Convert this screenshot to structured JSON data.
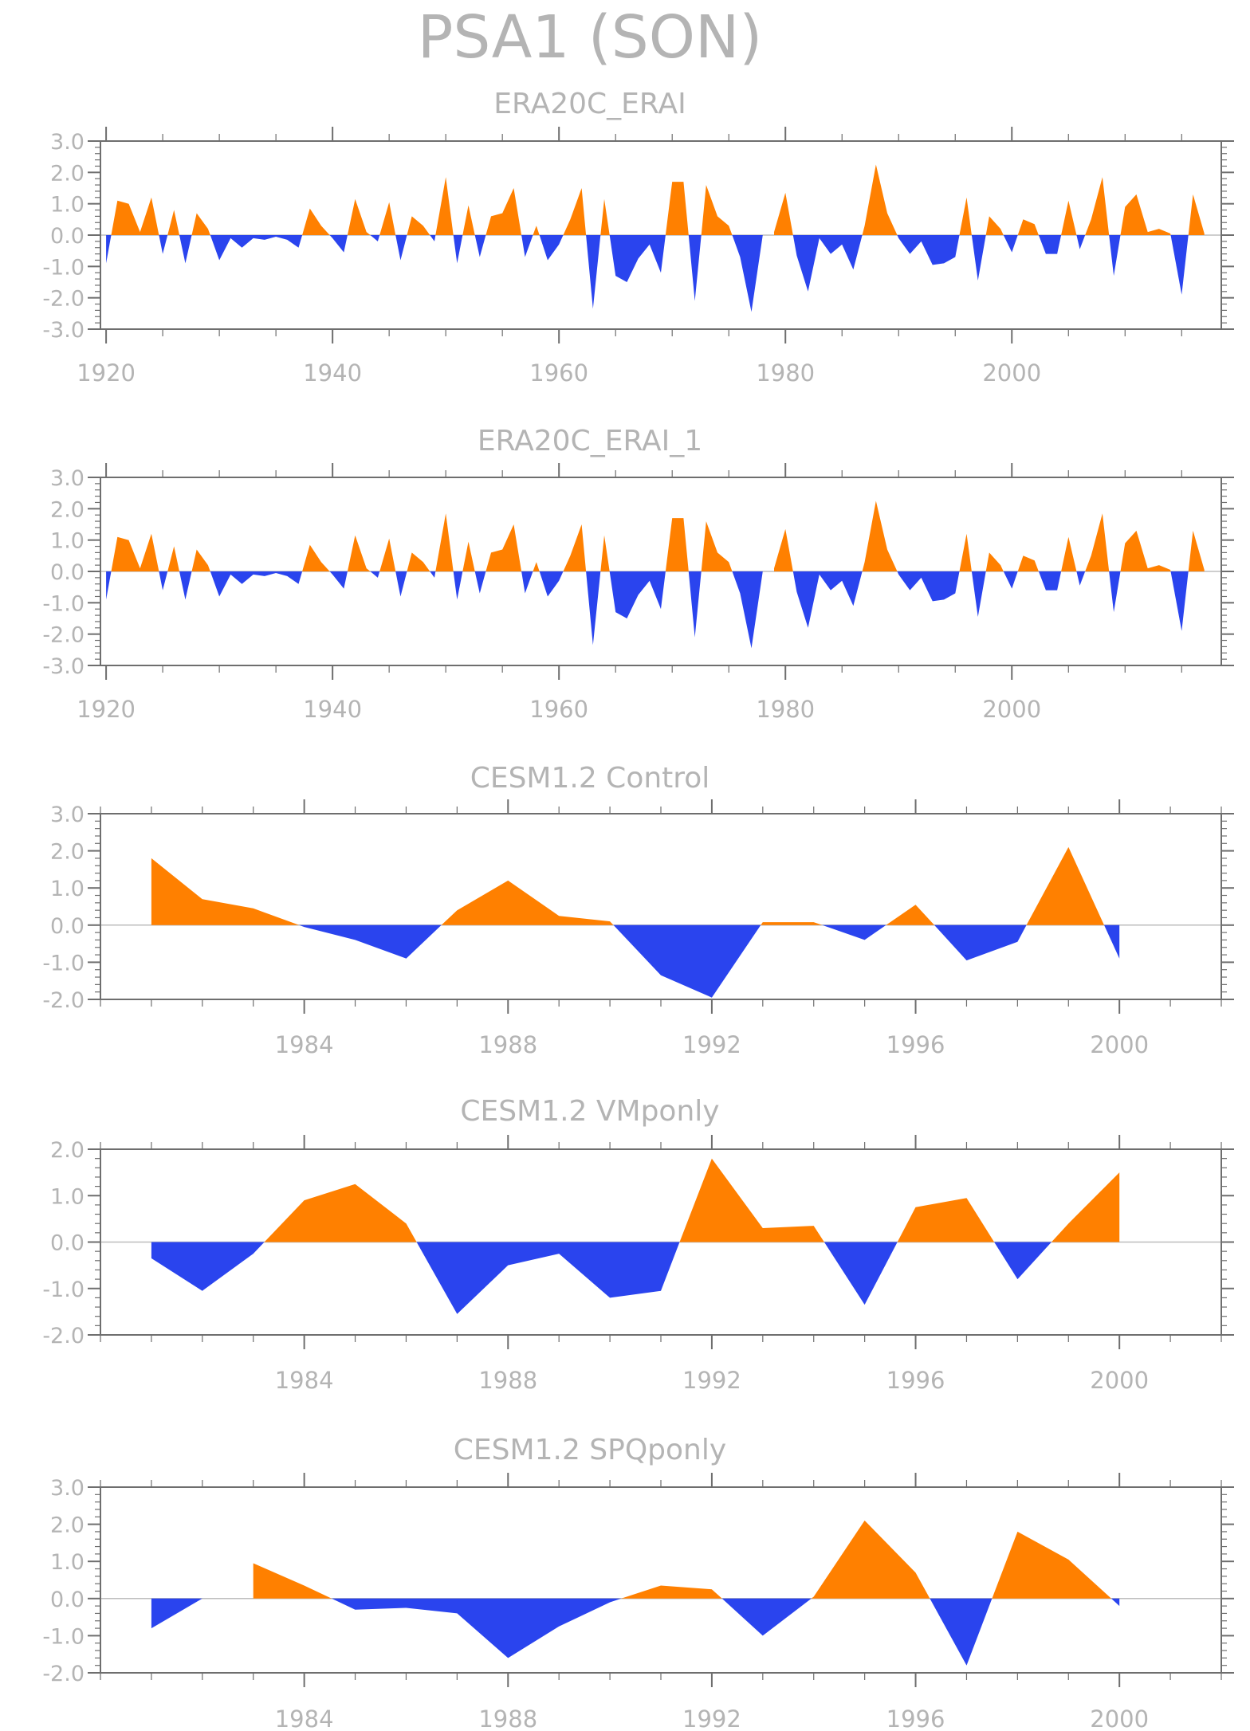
{
  "figure_title": "PSA1 (SON)",
  "colors": {
    "positive": "#ff8000",
    "negative": "#2a44ee",
    "axis": "#6e6e6e",
    "text": "#b4b4b4",
    "zero_line": "#bdbdbd"
  },
  "chart_data": [
    {
      "type": "area",
      "title": "ERA20C_ERAI",
      "xlim": [
        1919.5,
        2018.5
      ],
      "ylim": [
        -3.0,
        3.0
      ],
      "x_ticks": [
        1920,
        1940,
        1960,
        1980,
        2000
      ],
      "y_ticks": [
        "3.0",
        "2.0",
        "1.0",
        "0.0",
        "-1.0",
        "-2.0",
        "-3.0"
      ],
      "x": [
        1920,
        1921,
        1922,
        1923,
        1924,
        1925,
        1926,
        1927,
        1928,
        1929,
        1930,
        1931,
        1932,
        1933,
        1934,
        1935,
        1936,
        1937,
        1938,
        1939,
        1940,
        1941,
        1942,
        1943,
        1944,
        1945,
        1946,
        1947,
        1948,
        1949,
        1950,
        1951,
        1952,
        1953,
        1954,
        1955,
        1956,
        1957,
        1958,
        1959,
        1960,
        1961,
        1962,
        1963,
        1964,
        1965,
        1966,
        1967,
        1968,
        1969,
        1970,
        1971,
        1972,
        1973,
        1974,
        1975,
        1976,
        1977,
        1978,
        1979,
        1980,
        1981,
        1982,
        1983,
        1984,
        1985,
        1986,
        1987,
        1988,
        1989,
        1990,
        1991,
        1992,
        1993,
        1994,
        1995,
        1996,
        1997,
        1998,
        1999,
        2000,
        2001,
        2002,
        2003,
        2004,
        2005,
        2006,
        2007,
        2008,
        2009,
        2010,
        2011,
        2012,
        2013,
        2014,
        2015,
        2016,
        2017
      ],
      "values": [
        -0.9,
        1.1,
        1.0,
        0.1,
        1.2,
        -0.6,
        0.8,
        -0.9,
        0.7,
        0.2,
        -0.8,
        -0.1,
        -0.4,
        -0.1,
        -0.15,
        -0.05,
        -0.15,
        -0.4,
        0.85,
        0.3,
        -0.1,
        -0.55,
        1.15,
        0.1,
        -0.2,
        1.05,
        -0.8,
        0.6,
        0.3,
        -0.2,
        1.85,
        -0.9,
        0.95,
        -0.7,
        0.6,
        0.7,
        1.5,
        -0.7,
        0.3,
        -0.8,
        -0.3,
        0.5,
        1.5,
        -2.35,
        1.15,
        -1.3,
        -1.5,
        -0.75,
        -0.3,
        -1.2,
        1.7,
        1.7,
        -2.1,
        1.6,
        0.6,
        0.3,
        -0.7,
        -2.45,
        0.0,
        0.1,
        1.35,
        -0.65,
        -1.8,
        -0.1,
        -0.6,
        -0.3,
        -1.1,
        0.3,
        2.25,
        0.7,
        -0.1,
        -0.6,
        -0.2,
        -0.95,
        -0.9,
        -0.7,
        1.2,
        -1.45,
        0.6,
        0.2,
        -0.55,
        0.5,
        0.35,
        -0.6,
        -0.6,
        1.1,
        -0.45,
        0.5,
        1.85,
        -1.3,
        0.9,
        1.3,
        0.1,
        0.2,
        0.05,
        -1.9,
        1.3,
        0.05
      ]
    },
    {
      "type": "area",
      "title": "ERA20C_ERAI_1",
      "xlim": [
        1919.5,
        2018.5
      ],
      "ylim": [
        -3.0,
        3.0
      ],
      "x_ticks": [
        1920,
        1940,
        1960,
        1980,
        2000
      ],
      "y_ticks": [
        "3.0",
        "2.0",
        "1.0",
        "0.0",
        "-1.0",
        "-2.0",
        "-3.0"
      ],
      "x": [
        1920,
        1921,
        1922,
        1923,
        1924,
        1925,
        1926,
        1927,
        1928,
        1929,
        1930,
        1931,
        1932,
        1933,
        1934,
        1935,
        1936,
        1937,
        1938,
        1939,
        1940,
        1941,
        1942,
        1943,
        1944,
        1945,
        1946,
        1947,
        1948,
        1949,
        1950,
        1951,
        1952,
        1953,
        1954,
        1955,
        1956,
        1957,
        1958,
        1959,
        1960,
        1961,
        1962,
        1963,
        1964,
        1965,
        1966,
        1967,
        1968,
        1969,
        1970,
        1971,
        1972,
        1973,
        1974,
        1975,
        1976,
        1977,
        1978,
        1979,
        1980,
        1981,
        1982,
        1983,
        1984,
        1985,
        1986,
        1987,
        1988,
        1989,
        1990,
        1991,
        1992,
        1993,
        1994,
        1995,
        1996,
        1997,
        1998,
        1999,
        2000,
        2001,
        2002,
        2003,
        2004,
        2005,
        2006,
        2007,
        2008,
        2009,
        2010,
        2011,
        2012,
        2013,
        2014,
        2015,
        2016,
        2017
      ],
      "values": [
        -0.9,
        1.1,
        1.0,
        0.1,
        1.2,
        -0.6,
        0.8,
        -0.9,
        0.7,
        0.2,
        -0.8,
        -0.1,
        -0.4,
        -0.1,
        -0.15,
        -0.05,
        -0.15,
        -0.4,
        0.85,
        0.3,
        -0.1,
        -0.55,
        1.15,
        0.1,
        -0.2,
        1.05,
        -0.8,
        0.6,
        0.3,
        -0.2,
        1.85,
        -0.9,
        0.95,
        -0.7,
        0.6,
        0.7,
        1.5,
        -0.7,
        0.3,
        -0.8,
        -0.3,
        0.5,
        1.5,
        -2.35,
        1.15,
        -1.3,
        -1.5,
        -0.75,
        -0.3,
        -1.2,
        1.7,
        1.7,
        -2.1,
        1.6,
        0.6,
        0.3,
        -0.7,
        -2.45,
        0.0,
        0.1,
        1.35,
        -0.65,
        -1.8,
        -0.1,
        -0.6,
        -0.3,
        -1.1,
        0.3,
        2.25,
        0.7,
        -0.1,
        -0.6,
        -0.2,
        -0.95,
        -0.9,
        -0.7,
        1.2,
        -1.45,
        0.6,
        0.2,
        -0.55,
        0.5,
        0.35,
        -0.6,
        -0.6,
        1.1,
        -0.45,
        0.5,
        1.85,
        -1.3,
        0.9,
        1.3,
        0.1,
        0.2,
        0.05,
        -1.9,
        1.3,
        0.05
      ]
    },
    {
      "type": "area",
      "title": "CESM1.2 Control",
      "xlim": [
        1980,
        2002
      ],
      "ylim": [
        -2.0,
        3.0
      ],
      "x_ticks": [
        1984,
        1988,
        1992,
        1996,
        2000
      ],
      "y_ticks": [
        "3.0",
        "2.0",
        "1.0",
        "0.0",
        "-1.0",
        "-2.0"
      ],
      "x": [
        1981,
        1982,
        1983,
        1984,
        1985,
        1986,
        1987,
        1988,
        1989,
        1990,
        1991,
        1992,
        1993,
        1994,
        1995,
        1996,
        1997,
        1998,
        1999,
        2000
      ],
      "values": [
        1.8,
        0.7,
        0.45,
        -0.05,
        -0.4,
        -0.9,
        0.4,
        1.2,
        0.25,
        0.1,
        -1.35,
        -1.95,
        0.08,
        0.08,
        -0.4,
        0.55,
        -0.95,
        -0.45,
        2.1,
        -0.9
      ]
    },
    {
      "type": "area",
      "title": "CESM1.2 VMponly",
      "xlim": [
        1980,
        2002
      ],
      "ylim": [
        -2.0,
        2.0
      ],
      "x_ticks": [
        1984,
        1988,
        1992,
        1996,
        2000
      ],
      "y_ticks": [
        "2.0",
        "1.0",
        "0.0",
        "-1.0",
        "-2.0"
      ],
      "x": [
        1981,
        1982,
        1983,
        1984,
        1985,
        1986,
        1987,
        1988,
        1989,
        1990,
        1991,
        1992,
        1993,
        1994,
        1995,
        1996,
        1997,
        1998,
        1999,
        2000
      ],
      "values": [
        -0.35,
        -1.05,
        -0.25,
        0.9,
        1.25,
        0.4,
        -1.55,
        -0.5,
        -0.25,
        -1.2,
        -1.05,
        1.8,
        0.3,
        0.35,
        -1.35,
        0.75,
        0.95,
        -0.8,
        0.4,
        1.5
      ]
    },
    {
      "type": "area",
      "title": "CESM1.2 SPQponly",
      "xlim": [
        1980,
        2002
      ],
      "ylim": [
        -2.0,
        3.0
      ],
      "x_ticks": [
        1984,
        1988,
        1992,
        1996,
        2000
      ],
      "y_ticks": [
        "3.0",
        "2.0",
        "1.0",
        "0.0",
        "-1.0",
        "-2.0"
      ],
      "x": [
        1981,
        1982,
        1983,
        1984,
        1985,
        1986,
        1987,
        1988,
        1989,
        1990,
        1991,
        1992,
        1993,
        1994,
        1995,
        1996,
        1997,
        1998,
        1999,
        2000
      ],
      "values": [
        -0.8,
        0.0,
        0.95,
        0.35,
        -0.3,
        -0.25,
        -0.4,
        -1.6,
        -0.75,
        -0.1,
        0.35,
        0.25,
        -1.0,
        0.05,
        2.1,
        0.7,
        -1.8,
        1.8,
        1.05,
        -0.2
      ]
    }
  ]
}
